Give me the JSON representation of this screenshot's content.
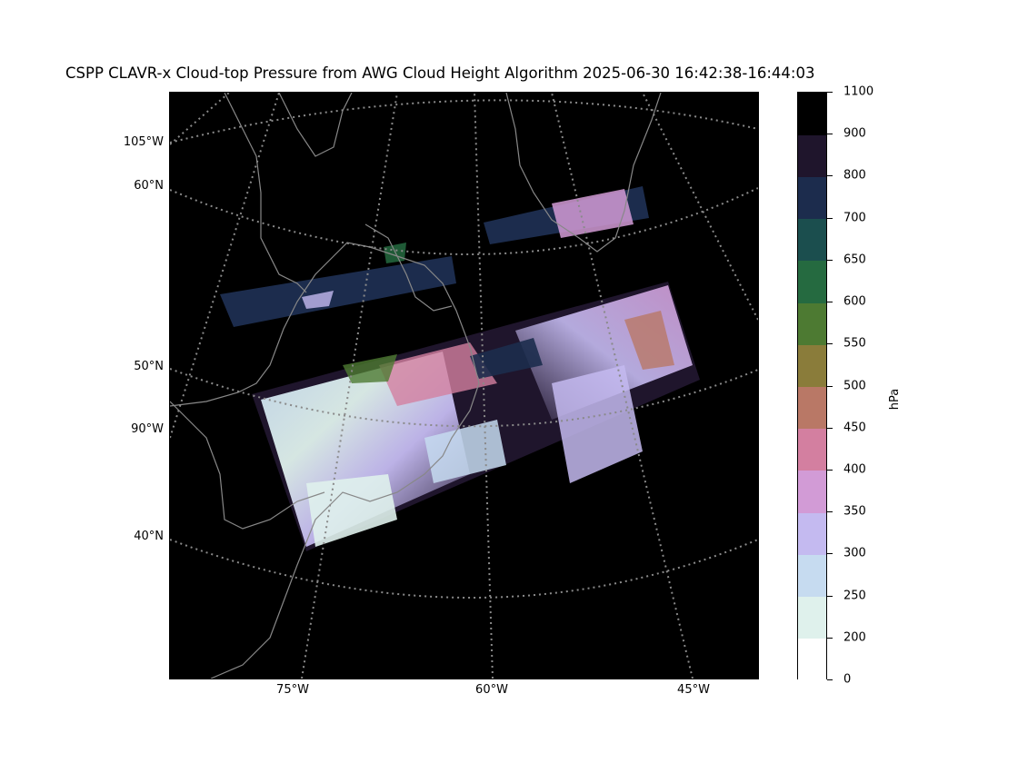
{
  "title": "CSPP CLAVR-x Cloud-top Pressure from AWG Cloud Height Algorithm 2025-06-30 16:42:38-16:44:03",
  "map": {
    "background": "#000000",
    "coastline_color": "#888888",
    "gridline_color": "#8a8a8a",
    "left_labels": [
      "105°W",
      "60°N",
      "50°N",
      "90°W",
      "40°N"
    ],
    "bottom_labels": [
      "75°W",
      "60°W",
      "45°W"
    ]
  },
  "colorbar": {
    "unit": "hPa",
    "tick_labels": [
      "0",
      "200",
      "250",
      "300",
      "350",
      "400",
      "450",
      "500",
      "550",
      "600",
      "650",
      "700",
      "800",
      "900",
      "1100"
    ],
    "bins": [
      {
        "from": 0,
        "to": 200,
        "color": "#ffffff"
      },
      {
        "from": 200,
        "to": 250,
        "color": "#dff1ec"
      },
      {
        "from": 250,
        "to": 300,
        "color": "#c6dbf0"
      },
      {
        "from": 300,
        "to": 350,
        "color": "#c4baf0"
      },
      {
        "from": 350,
        "to": 400,
        "color": "#d29bd6"
      },
      {
        "from": 400,
        "to": 450,
        "color": "#d37fa0"
      },
      {
        "from": 450,
        "to": 500,
        "color": "#b97866"
      },
      {
        "from": 500,
        "to": 550,
        "color": "#8a7c3a"
      },
      {
        "from": 550,
        "to": 600,
        "color": "#4d7a32"
      },
      {
        "from": 600,
        "to": 650,
        "color": "#256a40"
      },
      {
        "from": 650,
        "to": 700,
        "color": "#1b4e4e"
      },
      {
        "from": 700,
        "to": 800,
        "color": "#1c2c4d"
      },
      {
        "from": 800,
        "to": 900,
        "color": "#1f152c"
      },
      {
        "from": 900,
        "to": 1100,
        "color": "#000000"
      }
    ]
  }
}
